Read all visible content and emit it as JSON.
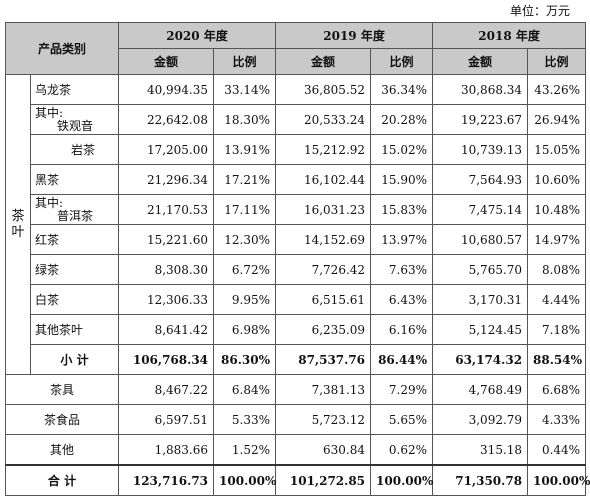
{
  "unit_label": "单位：万元",
  "header": {
    "category": "产品类别",
    "years": [
      "2020 年度",
      "2019 年度",
      "2018 年度"
    ],
    "amount": "金额",
    "ratio": "比例"
  },
  "tea_group_label": "茶\n叶",
  "rows": [
    {
      "label": "乌龙茶",
      "values": [
        "40,994.35",
        "33.14%",
        "36,805.52",
        "36.34%",
        "30,868.34",
        "43.26%"
      ]
    },
    {
      "label_line1": "其中:",
      "label_line2": "铁观音",
      "values": [
        "22,642.08",
        "18.30%",
        "20,533.24",
        "20.28%",
        "19,223.67",
        "26.94%"
      ]
    },
    {
      "label": "岩茶",
      "values": [
        "17,205.00",
        "13.91%",
        "15,212.92",
        "15.02%",
        "10,739.13",
        "15.05%"
      ]
    },
    {
      "label": "黑茶",
      "values": [
        "21,296.34",
        "17.21%",
        "16,102.44",
        "15.90%",
        "7,564.93",
        "10.60%"
      ]
    },
    {
      "label_line1": "其中:",
      "label_line2": "普洱茶",
      "values": [
        "21,170.53",
        "17.11%",
        "16,031.23",
        "15.83%",
        "7,475.14",
        "10.48%"
      ]
    },
    {
      "label": "红茶",
      "values": [
        "15,221.60",
        "12.30%",
        "14,152.69",
        "13.97%",
        "10,680.57",
        "14.97%"
      ]
    },
    {
      "label": "绿茶",
      "values": [
        "8,308.30",
        "6.72%",
        "7,726.42",
        "7.63%",
        "5,765.70",
        "8.08%"
      ]
    },
    {
      "label": "白茶",
      "values": [
        "12,306.33",
        "9.95%",
        "6,515.61",
        "6.43%",
        "3,170.31",
        "4.44%"
      ]
    },
    {
      "label": "其他茶叶",
      "values": [
        "8,641.42",
        "6.98%",
        "6,235.09",
        "6.16%",
        "5,124.45",
        "7.18%"
      ]
    }
  ],
  "subtotal": {
    "label": "小 计",
    "values": [
      "106,768.34",
      "86.30%",
      "87,537.76",
      "86.44%",
      "63,174.32",
      "88.54%"
    ]
  },
  "others": [
    {
      "label": "茶具",
      "values": [
        "8,467.22",
        "6.84%",
        "7,381.13",
        "7.29%",
        "4,768.49",
        "6.68%"
      ]
    },
    {
      "label": "茶食品",
      "values": [
        "6,597.51",
        "5.33%",
        "5,723.12",
        "5.65%",
        "3,092.79",
        "4.33%"
      ]
    },
    {
      "label": "其他",
      "values": [
        "1,883.66",
        "1.52%",
        "630.84",
        "0.62%",
        "315.18",
        "0.44%"
      ]
    }
  ],
  "total": {
    "label": "合 计",
    "values": [
      "123,716.73",
      "100.00%",
      "101,272.85",
      "100.00%",
      "71,350.78",
      "100.00%"
    ]
  }
}
